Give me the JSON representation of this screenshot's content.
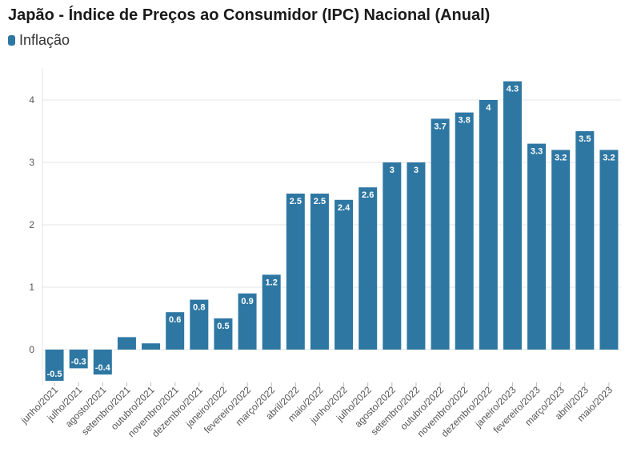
{
  "chart_data": {
    "type": "bar",
    "title": "Japão - Índice de Preços ao Consumidor (IPC) Nacional (Anual)",
    "legend": [
      {
        "name": "Inflação",
        "color": "#2e77a3"
      }
    ],
    "xlabel": "",
    "ylabel": "",
    "ylim": [
      -0.5,
      4.5
    ],
    "yticks": [
      0,
      1,
      2,
      3,
      4
    ],
    "grid": true,
    "categories": [
      "junho/2021",
      "julho/2021",
      "agosto/2021",
      "setembro/2021",
      "outubro/2021",
      "novembro/2021",
      "dezembro/2021",
      "janeiro/2022",
      "fevereiro/2022",
      "março/2022",
      "abril/2022",
      "maio/2022",
      "junho/2022",
      "julho/2022",
      "agosto/2022",
      "setembro/2022",
      "outubro/2022",
      "novembro/2022",
      "dezembro/2022",
      "janeiro/2023",
      "fevereiro/2023",
      "março/2023",
      "abril/2023",
      "maio/2023"
    ],
    "series": [
      {
        "name": "Inflação",
        "values": [
          -0.5,
          -0.3,
          -0.4,
          0.2,
          0.1,
          0.6,
          0.8,
          0.5,
          0.9,
          1.2,
          2.5,
          2.5,
          2.4,
          2.6,
          3,
          3,
          3.7,
          3.8,
          4,
          4.3,
          3.3,
          3.2,
          3.5,
          3.2
        ],
        "labels": [
          "-0.5",
          "-0.3",
          "-0.4",
          "",
          "",
          "0.6",
          "0.8",
          "0.5",
          "0.9",
          "1.2",
          "2.5",
          "2.5",
          "2.4",
          "2.6",
          "3",
          "3",
          "3.7",
          "3.8",
          "4",
          "4.3",
          "3.3",
          "3.2",
          "3.5",
          "3.2"
        ]
      }
    ]
  }
}
